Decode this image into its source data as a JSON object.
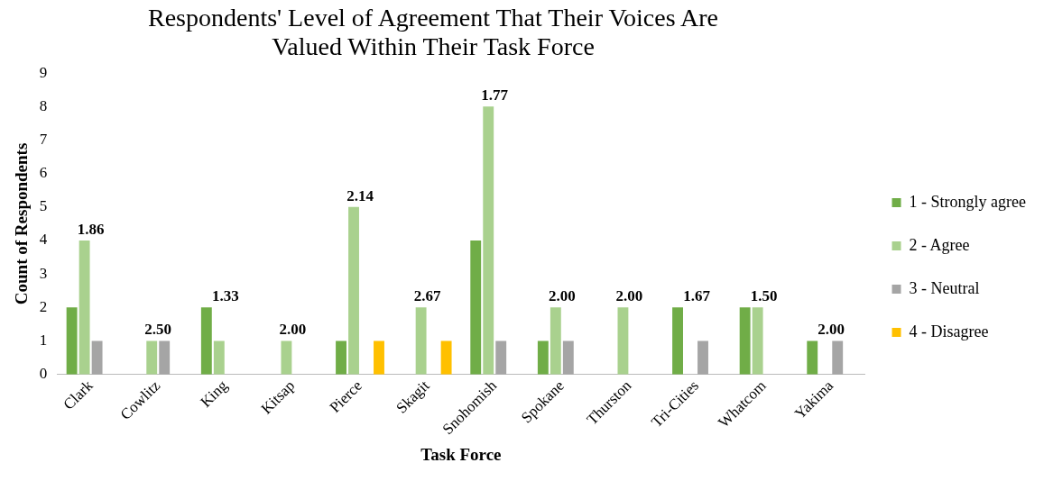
{
  "chart_data": {
    "type": "bar",
    "title": "Respondents' Level of Agreement That Their Voices Are Valued Within Their Task Force",
    "xlabel": "Task Force",
    "ylabel": "Count of Respondents",
    "categories": [
      "Clark",
      "Cowlitz",
      "King",
      "Kitsap",
      "Pierce",
      "Skagit",
      "Snohomish",
      "Spokane",
      "Thurston",
      "Tri-Cities",
      "Whatcom",
      "Yakima"
    ],
    "series": [
      {
        "name": "1 - Strongly agree",
        "color": "#70ad47",
        "values": [
          2,
          0,
          2,
          0,
          1,
          0,
          4,
          1,
          0,
          2,
          2,
          1
        ]
      },
      {
        "name": "2 - Agree",
        "color": "#a9d18e",
        "values": [
          4,
          1,
          1,
          1,
          5,
          2,
          8,
          2,
          2,
          0,
          2,
          0
        ]
      },
      {
        "name": "3 - Neutral",
        "color": "#a5a5a5",
        "values": [
          1,
          1,
          0,
          0,
          0,
          0,
          1,
          1,
          0,
          1,
          0,
          1
        ]
      },
      {
        "name": "4 - Disagree",
        "color": "#ffc000",
        "values": [
          0,
          0,
          0,
          0,
          1,
          1,
          0,
          0,
          0,
          0,
          0,
          0
        ]
      }
    ],
    "ylim": [
      0,
      9
    ],
    "yticks": [
      0,
      1,
      2,
      3,
      4,
      5,
      6,
      7,
      8,
      9
    ],
    "grid": false,
    "legend": "right",
    "annotations": [
      "1.86",
      "2.50",
      "1.33",
      "2.00",
      "2.14",
      "2.67",
      "1.77",
      "2.00",
      "2.00",
      "1.67",
      "1.50",
      "2.00"
    ]
  }
}
